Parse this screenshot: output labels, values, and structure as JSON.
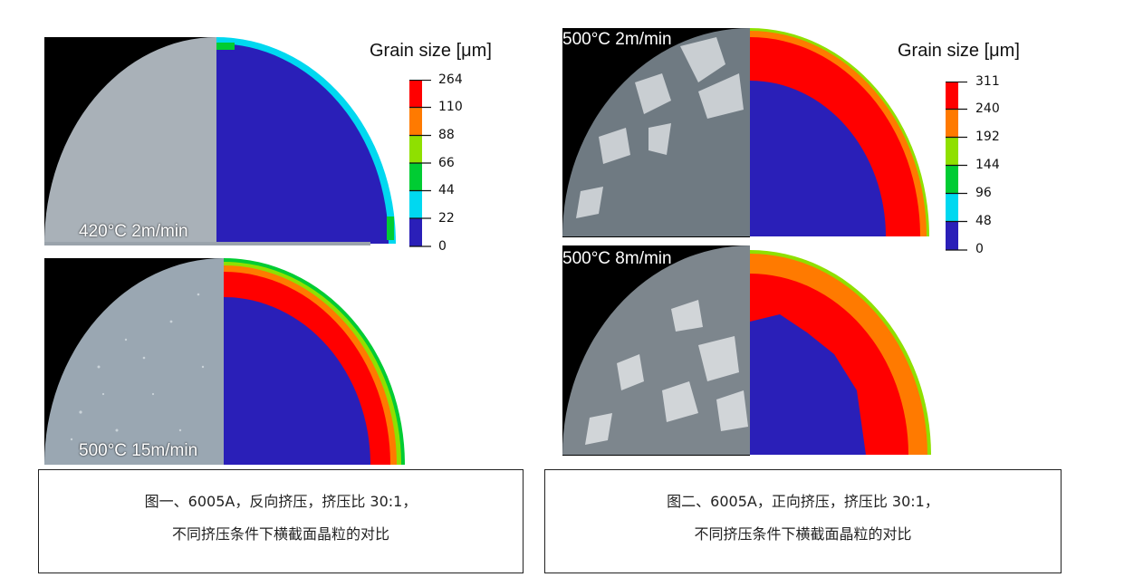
{
  "figure1": {
    "legend": {
      "title": "Grain size [μm]",
      "ticks": [
        "264",
        "110",
        "88",
        "66",
        "44",
        "22",
        "0"
      ],
      "colors": [
        "#ff0000",
        "#ff7a00",
        "#8fe000",
        "#00cc33",
        "#00a86b",
        "#00d8f0",
        "#2a1fb8"
      ]
    },
    "panels": [
      {
        "label": "420°C 2m/min"
      },
      {
        "label": "500°C 15m/min"
      }
    ],
    "caption": {
      "line1": "图一、6005A，反向挤压，挤压比 30:1，",
      "line2": "不同挤压条件下横截面晶粒的对比"
    }
  },
  "figure2": {
    "legend": {
      "title": "Grain size [μm]",
      "ticks": [
        "311",
        "240",
        "192",
        "144",
        "96",
        "48",
        "0"
      ],
      "colors": [
        "#ff0000",
        "#ff7a00",
        "#8fe000",
        "#00cc33",
        "#00d8f0",
        "#2a1fb8"
      ]
    },
    "panels": [
      {
        "label": "500°C 2m/min"
      },
      {
        "label": "500°C 8m/min"
      }
    ],
    "caption": {
      "line1": "图二、6005A，正向挤压，挤压比 30:1，",
      "line2": "不同挤压条件下横截面晶粒的对比"
    }
  }
}
